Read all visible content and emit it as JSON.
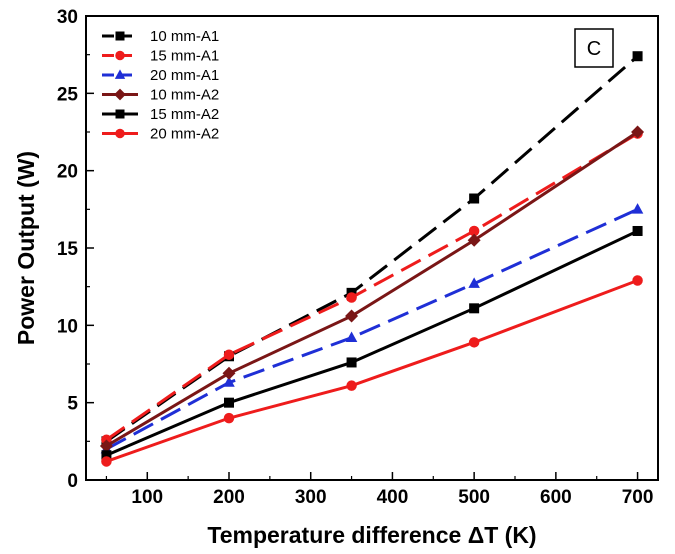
{
  "chart_data": {
    "type": "line",
    "xlabel": "Temperature difference ΔT (K)",
    "ylabel": "Power Output (W)",
    "xlim": [
      25,
      725
    ],
    "ylim": [
      0,
      30
    ],
    "x_ticks": [
      100,
      200,
      300,
      400,
      500,
      600,
      700
    ],
    "x_tick_labels": [
      "100",
      "200",
      "300",
      "400",
      "500",
      "600",
      "700"
    ],
    "y_ticks": [
      0,
      5,
      10,
      15,
      20,
      25,
      30
    ],
    "y_tick_labels": [
      "0",
      "5",
      "10",
      "15",
      "20",
      "25",
      "30"
    ],
    "panel_label": "C",
    "legend_position": "top-left",
    "grid": false,
    "x": [
      50,
      200,
      350,
      500,
      700
    ],
    "series": [
      {
        "name": "10 mm-A1",
        "values": [
          2.5,
          8.0,
          12.1,
          18.2,
          27.4
        ],
        "color": "#000000",
        "dash": "dashed",
        "marker": "square"
      },
      {
        "name": "15 mm-A1",
        "values": [
          2.6,
          8.1,
          11.8,
          16.1,
          22.4
        ],
        "color": "#ee1c1c",
        "dash": "dashed",
        "marker": "circle"
      },
      {
        "name": "20 mm-A1",
        "values": [
          2.0,
          6.3,
          9.2,
          12.7,
          17.5
        ],
        "color": "#1f2fd6",
        "dash": "dashed",
        "marker": "triangle"
      },
      {
        "name": "10 mm-A2",
        "values": [
          2.2,
          6.9,
          10.6,
          15.5,
          22.5
        ],
        "color": "#7a1616",
        "dash": "solid",
        "marker": "diamond"
      },
      {
        "name": "15 mm-A2",
        "values": [
          1.6,
          5.0,
          7.6,
          11.1,
          16.1
        ],
        "color": "#000000",
        "dash": "solid",
        "marker": "square"
      },
      {
        "name": "20 mm-A2",
        "values": [
          1.2,
          4.0,
          6.1,
          8.9,
          12.9
        ],
        "color": "#ee1c1c",
        "dash": "solid",
        "marker": "circle"
      }
    ]
  }
}
